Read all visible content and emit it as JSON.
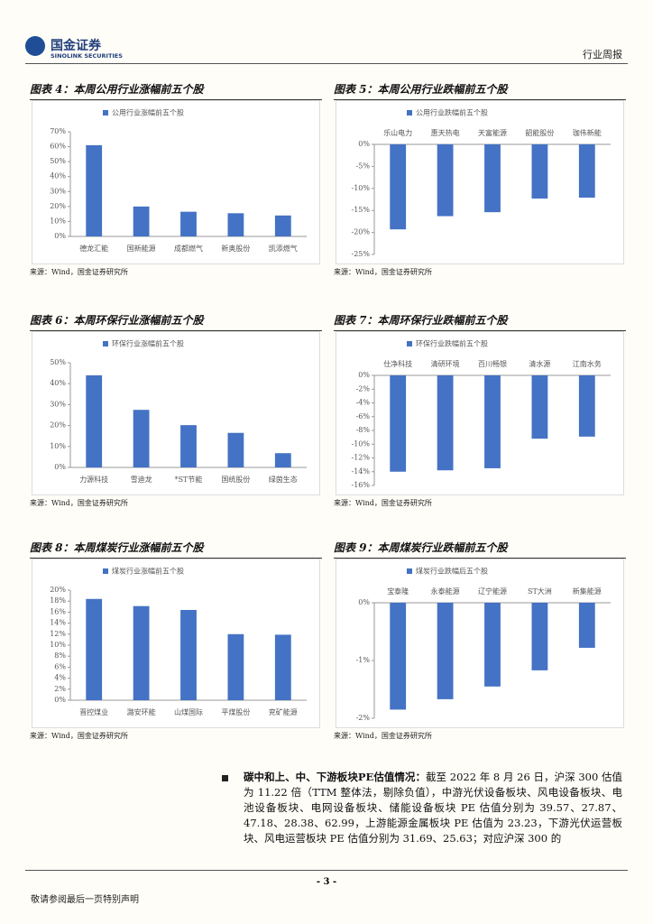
{
  "header": {
    "company": "国金证券",
    "company_en": "SINOLINK SECURITIES",
    "report_type": "行业周报"
  },
  "chart_data": [
    {
      "type": "bar",
      "title": "图表 4：本周公用行业涨幅前五个股",
      "source": "来源：Wind，国金证券研究所",
      "categories": [
        "德龙汇能",
        "国新能源",
        "成都燃气",
        "新奥股份",
        "凯添燃气"
      ],
      "series": [
        {
          "name": "公用行业涨幅前五个股",
          "color": "#4472c4",
          "values": [
            61,
            20,
            16.5,
            15.5,
            14
          ]
        }
      ],
      "ylim": [
        0,
        70
      ],
      "yticks": [
        {
          "value": 0,
          "label": "0%"
        },
        {
          "value": 10,
          "label": "10%"
        },
        {
          "value": 20,
          "label": "20%"
        },
        {
          "value": 30,
          "label": "30%"
        },
        {
          "value": 40,
          "label": "40%"
        },
        {
          "value": 50,
          "label": "50%"
        },
        {
          "value": 60,
          "label": "60%"
        },
        {
          "value": 70,
          "label": "70%"
        }
      ]
    },
    {
      "type": "bar",
      "title": "图表 5：本周公用行业跌幅前五个股",
      "source": "来源：Wind，国金证券研究所",
      "categories": [
        "乐山电力",
        "惠天热电",
        "天富能源",
        "韶能股份",
        "珈伟新能"
      ],
      "series": [
        {
          "name": "公用行业跌幅前五个股",
          "color": "#4472c4",
          "values": [
            -19.3,
            -16.3,
            -15.4,
            -12.3,
            -12.1
          ]
        }
      ],
      "ylim": [
        -25,
        0
      ],
      "yticks": [
        {
          "value": 0,
          "label": "0%"
        },
        {
          "value": -5,
          "label": "-5%"
        },
        {
          "value": -10,
          "label": "-10%"
        },
        {
          "value": -15,
          "label": "-15%"
        },
        {
          "value": -20,
          "label": "-20%"
        },
        {
          "value": -25,
          "label": "-25%"
        }
      ]
    },
    {
      "type": "bar",
      "title": "图表 6：本周环保行业涨幅前五个股",
      "source": "来源：Wind，国金证券研究所",
      "categories": [
        "力源科技",
        "雪迪龙",
        "*ST节能",
        "国统股份",
        "绿茵生态"
      ],
      "series": [
        {
          "name": "环保行业涨幅前五个股",
          "color": "#4472c4",
          "values": [
            44,
            27.5,
            20.2,
            16.5,
            6.8
          ]
        }
      ],
      "ylim": [
        0,
        50
      ],
      "yticks": [
        {
          "value": 0,
          "label": "0%"
        },
        {
          "value": 10,
          "label": "10%"
        },
        {
          "value": 20,
          "label": "20%"
        },
        {
          "value": 30,
          "label": "30%"
        },
        {
          "value": 40,
          "label": "40%"
        },
        {
          "value": 50,
          "label": "50%"
        }
      ]
    },
    {
      "type": "bar",
      "title": "图表 7：本周环保行业跌幅前五个股",
      "source": "来源：Wind，国金证券研究所",
      "categories": [
        "仕净科技",
        "清研环境",
        "百川畅银",
        "清水源",
        "江南水务"
      ],
      "series": [
        {
          "name": "环保行业跌幅前五个股",
          "color": "#4472c4",
          "values": [
            -14,
            -13.8,
            -13.5,
            -9.2,
            -8.9
          ]
        }
      ],
      "ylim": [
        -16,
        0
      ],
      "yticks": [
        {
          "value": 0,
          "label": "0%"
        },
        {
          "value": -2,
          "label": "-2%"
        },
        {
          "value": -4,
          "label": "-4%"
        },
        {
          "value": -6,
          "label": "-6%"
        },
        {
          "value": -8,
          "label": "-8%"
        },
        {
          "value": -10,
          "label": "-10%"
        },
        {
          "value": -12,
          "label": "-12%"
        },
        {
          "value": -14,
          "label": "-14%"
        },
        {
          "value": -16,
          "label": "-16%"
        }
      ]
    },
    {
      "type": "bar",
      "title": "图表 8：本周煤炭行业涨幅前五个股",
      "source": "来源：Wind，国金证券研究所",
      "categories": [
        "晋控煤业",
        "潞安环能",
        "山煤国际",
        "平煤股份",
        "兖矿能源"
      ],
      "series": [
        {
          "name": "煤炭行业涨幅前五个股",
          "color": "#4472c4",
          "values": [
            18.4,
            17.1,
            16.4,
            12,
            11.9
          ]
        }
      ],
      "ylim": [
        0,
        20
      ],
      "yticks": [
        {
          "value": 0,
          "label": "0%"
        },
        {
          "value": 2,
          "label": "2%"
        },
        {
          "value": 4,
          "label": "4%"
        },
        {
          "value": 6,
          "label": "6%"
        },
        {
          "value": 8,
          "label": "8%"
        },
        {
          "value": 10,
          "label": "10%"
        },
        {
          "value": 12,
          "label": "12%"
        },
        {
          "value": 14,
          "label": "14%"
        },
        {
          "value": 16,
          "label": "16%"
        },
        {
          "value": 18,
          "label": "18%"
        },
        {
          "value": 20,
          "label": "20%"
        }
      ]
    },
    {
      "type": "bar",
      "title": "图表 9：本周煤炭行业跌幅前五个股",
      "source": "来源：Wind，国金证券研究所",
      "categories": [
        "宝泰隆",
        "永泰能源",
        "辽宁能源",
        "ST大洲",
        "新集能源"
      ],
      "series": [
        {
          "name": "煤炭行业跌幅后五个股",
          "color": "#4472c4",
          "values": [
            -1.85,
            -1.67,
            -1.45,
            -1.17,
            -0.78
          ]
        }
      ],
      "ylim": [
        -2,
        0
      ],
      "yticks": [
        {
          "value": 0,
          "label": "0%"
        },
        {
          "value": -1,
          "label": "-1%"
        },
        {
          "value": -2,
          "label": "-2%"
        }
      ]
    }
  ],
  "paragraph": {
    "lead": "碳中和上、中、下游板块PE估值情况：",
    "text": "截至 2022 年 8 月 26 日，沪深 300 估值为 11.22 倍（TTM 整体法，剔除负值），中游光伏设备板块、风电设备板块、电池设备板块、电网设备板块、储能设备板块 PE 估值分别为 39.57、27.87、47.18、28.38、62.99，上游能源金属板块 PE 估值为 23.23，下游光伏运营板块、风电运营板块 PE 估值分别为 31.69、25.63；对应沪深 300 的"
  },
  "footer": {
    "page": "- 3 -",
    "note": "敬请参阅最后一页特别声明"
  }
}
